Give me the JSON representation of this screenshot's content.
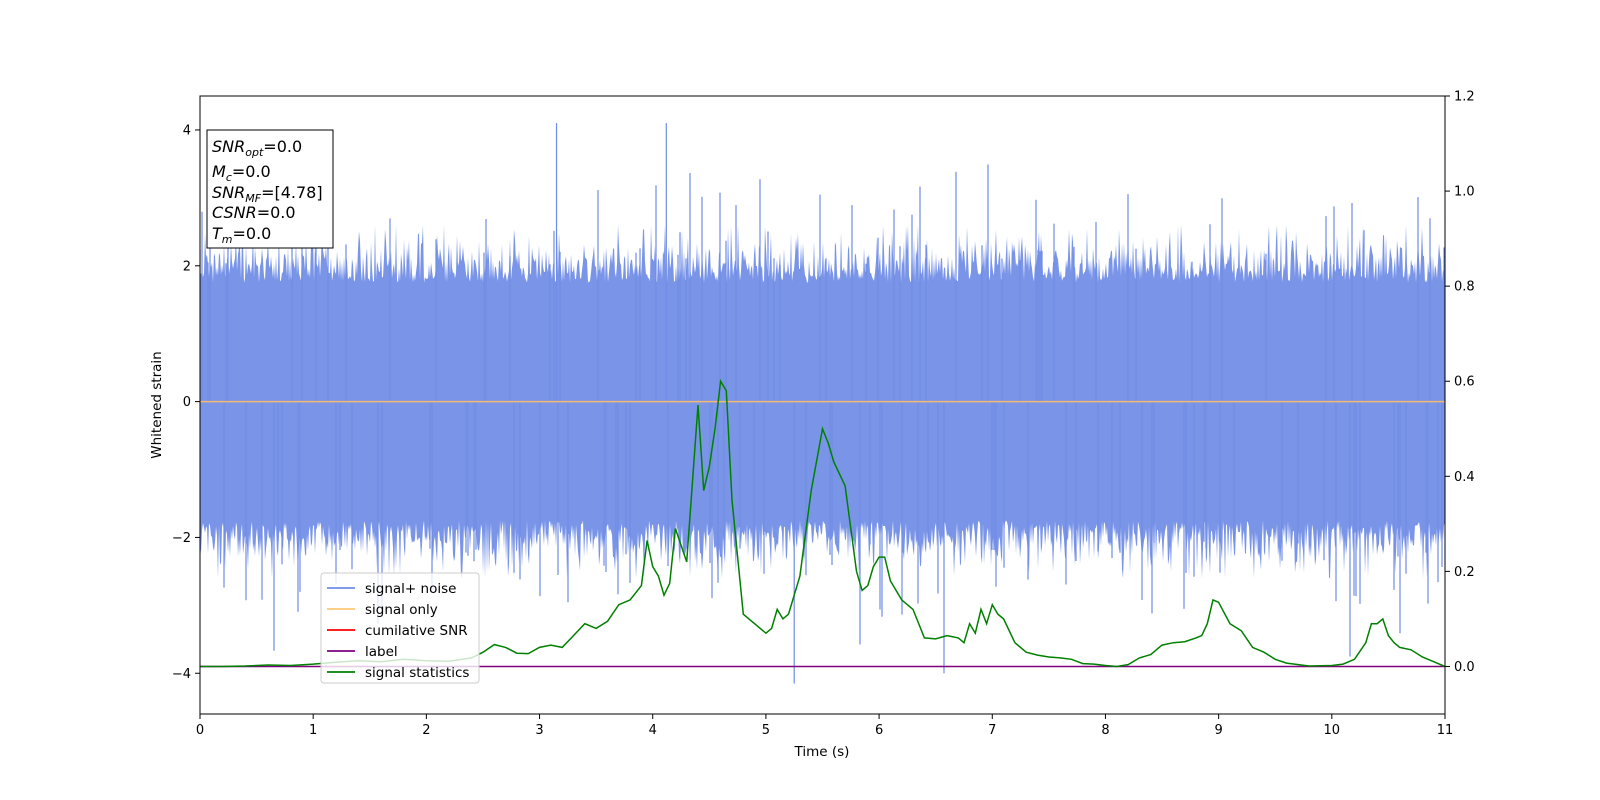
{
  "chart_data": {
    "type": "line",
    "xlabel": "Time (s)",
    "ylabel": "Whitened strain",
    "xlim": [
      0,
      11
    ],
    "ylim": [
      -4.6,
      4.5
    ],
    "y2lim": [
      -0.1,
      1.2
    ],
    "x_ticks": [
      "0",
      "1",
      "2",
      "3",
      "4",
      "5",
      "6",
      "7",
      "8",
      "9",
      "10",
      "11"
    ],
    "y_ticks": [
      "4",
      "2",
      "0",
      "−2",
      "−4"
    ],
    "y2_ticks": [
      "1.2",
      "1.0",
      "0.8",
      "0.6",
      "0.4",
      "0.2",
      "0.0"
    ],
    "info_box": {
      "snr_opt": {
        "base": "SNR",
        "sub": "opt",
        "value": "=0.0"
      },
      "mc": {
        "base": "M",
        "sub": "c",
        "value": "=0.0"
      },
      "snr_mf": {
        "base": "SNR",
        "sub": "MF",
        "value": "=[4.78]"
      },
      "csnr": {
        "base": "CSNR",
        "value": "=0.0"
      },
      "tm": {
        "base": "T",
        "sub": "m",
        "value": "=0.0"
      }
    },
    "legend": {
      "location": "lower left",
      "entries": [
        {
          "label": "signal+ noise",
          "color": "#6f8ce6"
        },
        {
          "label": "signal only",
          "color": "#ffc878"
        },
        {
          "label": "cumilative SNR",
          "color": "#ff0000"
        },
        {
          "label": "label",
          "color": "#800080"
        },
        {
          "label": "signal statistics",
          "color": "#008000"
        }
      ]
    },
    "series": [
      {
        "name": "signal+ noise",
        "axis": "left",
        "description_values": "dense whitened noise, approx. standard deviation 1, peaks near ±4",
        "std": 1.0,
        "min": -4.15,
        "min_x": 5.25,
        "max": 4.1,
        "color": "#6f8ce6"
      },
      {
        "name": "signal only",
        "axis": "left",
        "x": [
          0,
          11
        ],
        "y": [
          0,
          0
        ],
        "color": "#f4b870"
      },
      {
        "name": "label",
        "axis": "right",
        "x": [
          0,
          11
        ],
        "y": [
          0,
          0
        ],
        "color": "#800080"
      },
      {
        "name": "signal statistics",
        "axis": "right",
        "color": "#008000",
        "x": [
          0,
          0.2,
          0.4,
          0.6,
          0.8,
          1.0,
          1.2,
          1.4,
          1.6,
          1.8,
          2.0,
          2.2,
          2.4,
          2.5,
          2.6,
          2.7,
          2.8,
          2.9,
          3.0,
          3.1,
          3.2,
          3.3,
          3.4,
          3.5,
          3.6,
          3.7,
          3.8,
          3.9,
          3.95,
          4.0,
          4.05,
          4.1,
          4.15,
          4.2,
          4.3,
          4.4,
          4.45,
          4.5,
          4.55,
          4.6,
          4.65,
          4.7,
          4.8,
          4.9,
          5.0,
          5.05,
          5.1,
          5.15,
          5.2,
          5.3,
          5.4,
          5.5,
          5.55,
          5.6,
          5.7,
          5.8,
          5.85,
          5.9,
          5.95,
          6.0,
          6.05,
          6.1,
          6.2,
          6.3,
          6.4,
          6.5,
          6.6,
          6.7,
          6.75,
          6.8,
          6.85,
          6.9,
          6.95,
          7.0,
          7.05,
          7.1,
          7.2,
          7.3,
          7.4,
          7.5,
          7.6,
          7.7,
          7.8,
          7.9,
          8.0,
          8.1,
          8.2,
          8.3,
          8.4,
          8.5,
          8.6,
          8.7,
          8.8,
          8.85,
          8.9,
          8.95,
          9.0,
          9.1,
          9.2,
          9.3,
          9.4,
          9.5,
          9.6,
          9.8,
          10.0,
          10.1,
          10.2,
          10.3,
          10.35,
          10.4,
          10.45,
          10.5,
          10.55,
          10.6,
          10.7,
          10.8,
          10.9,
          11.0
        ],
        "y": [
          0.0,
          0.0,
          0.001,
          0.003,
          0.002,
          0.005,
          0.009,
          0.012,
          0.01,
          0.015,
          0.012,
          0.011,
          0.018,
          0.03,
          0.046,
          0.04,
          0.028,
          0.027,
          0.04,
          0.045,
          0.04,
          0.065,
          0.09,
          0.08,
          0.095,
          0.13,
          0.14,
          0.17,
          0.265,
          0.21,
          0.19,
          0.15,
          0.175,
          0.29,
          0.22,
          0.55,
          0.37,
          0.42,
          0.5,
          0.6,
          0.58,
          0.35,
          0.11,
          0.09,
          0.07,
          0.08,
          0.12,
          0.1,
          0.11,
          0.19,
          0.37,
          0.5,
          0.47,
          0.43,
          0.38,
          0.2,
          0.16,
          0.17,
          0.21,
          0.23,
          0.23,
          0.18,
          0.14,
          0.12,
          0.06,
          0.058,
          0.065,
          0.06,
          0.05,
          0.09,
          0.07,
          0.12,
          0.09,
          0.13,
          0.11,
          0.1,
          0.05,
          0.03,
          0.024,
          0.02,
          0.018,
          0.015,
          0.006,
          0.005,
          0.002,
          0.0,
          0.004,
          0.018,
          0.025,
          0.045,
          0.05,
          0.052,
          0.06,
          0.065,
          0.09,
          0.14,
          0.135,
          0.09,
          0.075,
          0.04,
          0.03,
          0.015,
          0.007,
          0.001,
          0.002,
          0.005,
          0.015,
          0.05,
          0.09,
          0.09,
          0.1,
          0.065,
          0.05,
          0.04,
          0.035,
          0.02,
          0.01,
          0.0
        ]
      }
    ]
  }
}
